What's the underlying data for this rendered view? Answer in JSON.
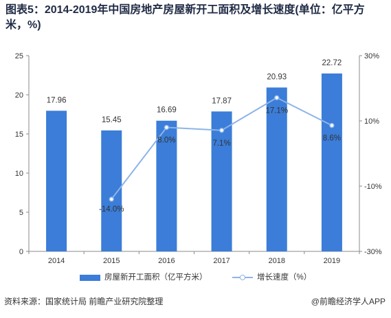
{
  "title": "图表5：2014-2019年中国房地产房屋新开工面积及增长速度(单位：亿平方米，%)",
  "source": "资料来源：国家统计局 前瞻产业研究院整理",
  "credit": "@前瞻经济学人APP",
  "colors": {
    "bar": "#3b7dd8",
    "line": "#8cb4e8",
    "axis": "#8a8a8a",
    "text": "#333333"
  },
  "chart_data": {
    "type": "bar",
    "categories": [
      "2014",
      "2015",
      "2016",
      "2017",
      "2018",
      "2019"
    ],
    "series": [
      {
        "name": "房屋新开工面积（亿平方米）",
        "type": "bar",
        "axis": "left",
        "values": [
          17.96,
          15.45,
          16.69,
          17.87,
          20.93,
          22.72
        ],
        "labels": [
          "17.96",
          "15.45",
          "16.69",
          "17.87",
          "20.93",
          "22.72"
        ]
      },
      {
        "name": "增长速度（%）",
        "type": "line",
        "axis": "right",
        "values": [
          null,
          -14.0,
          8.0,
          7.1,
          17.1,
          8.6
        ],
        "labels": [
          "",
          "-14.0%",
          "8.0%",
          "7.1%",
          "17.1%",
          "8.6%"
        ]
      }
    ],
    "y_left": {
      "min": 0,
      "max": 25,
      "ticks": [
        "0",
        "5",
        "10",
        "15",
        "20",
        "25"
      ]
    },
    "y_right": {
      "min": -30,
      "max": 30,
      "ticks": [
        "-30%",
        "-10%",
        "10%",
        "30%"
      ],
      "tick_values": [
        -30,
        -10,
        10,
        30
      ]
    },
    "legend_position": "bottom",
    "grid": false
  }
}
